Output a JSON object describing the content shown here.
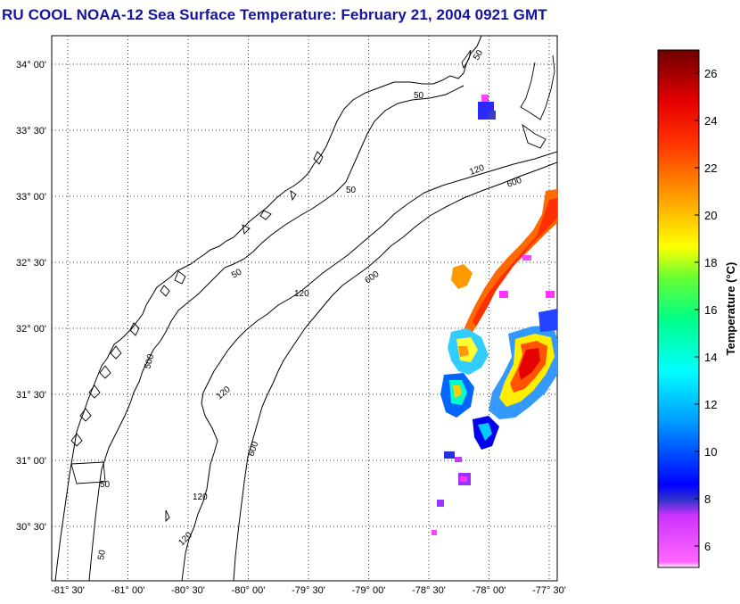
{
  "title": "RU COOL  NOAA-12  Sea Surface Temperature:  February 21, 2004 0921 GMT",
  "map": {
    "lon_ticks": [
      "-81° 30'",
      "-81° 00'",
      "-80° 30'",
      "-80° 00'",
      "-79° 30'",
      "-79° 00'",
      "-78° 30'",
      "-78° 00'",
      "-77° 30'"
    ],
    "lat_ticks": [
      "34° 00'",
      "33° 30'",
      "33° 00'",
      "32° 30'",
      "32° 00'",
      "31° 30'",
      "31° 00'",
      "30° 30'"
    ],
    "isobath_labels": {
      "d50": "50",
      "d120": "120",
      "d600": "600",
      "d500": "500"
    }
  },
  "colorbar": {
    "label": "Temperature (°C)",
    "ticks": [
      "26",
      "24",
      "22",
      "20",
      "18",
      "16",
      "14",
      "12",
      "10",
      "8",
      "6"
    ],
    "colors": [
      "#7a0000",
      "#ff0000",
      "#ff9900",
      "#ffff00",
      "#00ff60",
      "#00ffff",
      "#0000ff",
      "#ff00ff",
      "#ffffff"
    ]
  }
}
